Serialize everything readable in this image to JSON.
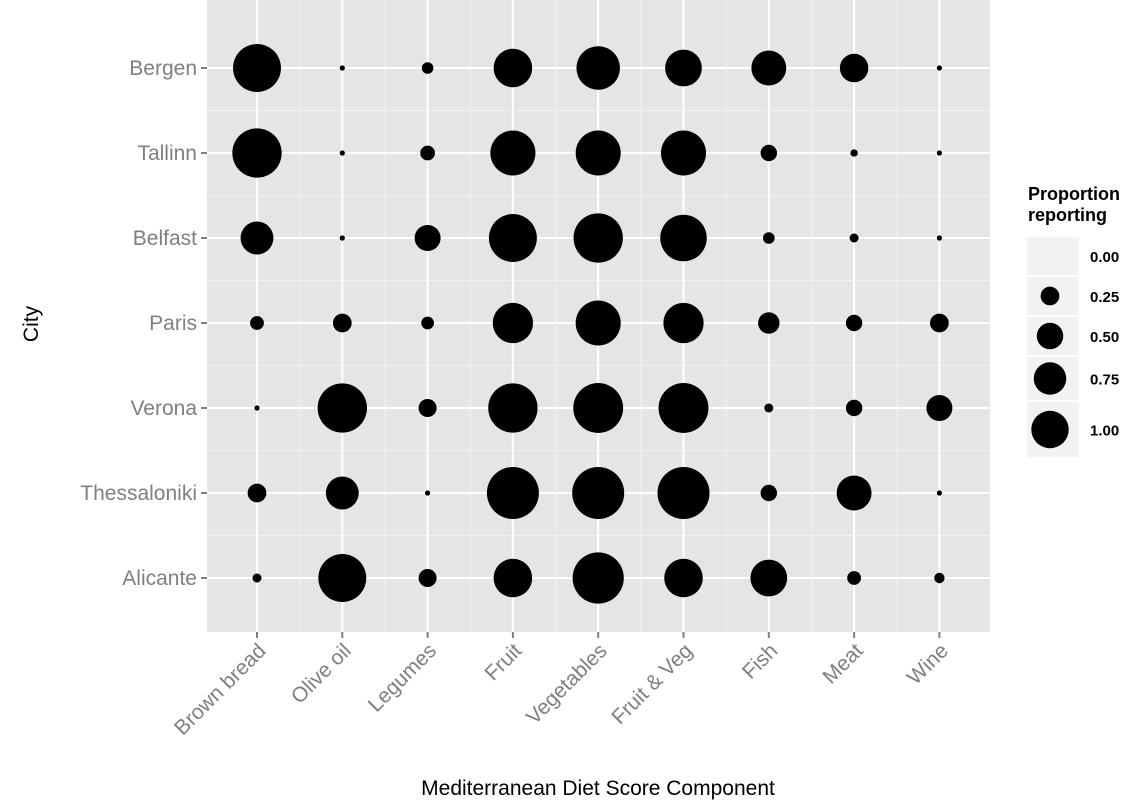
{
  "chart_data": {
    "type": "scatter",
    "xlabel": "Mediterranean Diet Score Component",
    "ylabel": "City",
    "categories": [
      "Brown bread",
      "Olive oil",
      "Legumes",
      "Fruit",
      "Vegetables",
      "Fruit & Veg",
      "Fish",
      "Meat",
      "Wine"
    ],
    "cities": [
      "Bergen",
      "Tallinn",
      "Belfast",
      "Paris",
      "Verona",
      "Thessaloniki",
      "Alicante"
    ],
    "size_legend": {
      "title": [
        "Proportion",
        "reporting"
      ],
      "breaks": [
        0.0,
        0.25,
        0.5,
        0.75,
        1.0
      ],
      "labels": [
        "0.00",
        "0.25",
        "0.50",
        "0.75",
        "1.00"
      ]
    },
    "series": [
      {
        "city": "Bergen",
        "values": [
          0.85,
          0.01,
          0.05,
          0.55,
          0.7,
          0.5,
          0.45,
          0.3,
          0.01
        ]
      },
      {
        "city": "Tallinn",
        "values": [
          0.9,
          0.01,
          0.08,
          0.75,
          0.75,
          0.75,
          0.1,
          0.02,
          0.01
        ]
      },
      {
        "city": "Belfast",
        "values": [
          0.4,
          0.01,
          0.25,
          0.85,
          0.9,
          0.8,
          0.05,
          0.03,
          0.01
        ]
      },
      {
        "city": "Paris",
        "values": [
          0.07,
          0.13,
          0.06,
          0.6,
          0.75,
          0.6,
          0.17,
          0.1,
          0.13
        ]
      },
      {
        "city": "Verona",
        "values": [
          0.01,
          0.9,
          0.12,
          0.9,
          0.92,
          0.92,
          0.03,
          0.1,
          0.25
        ]
      },
      {
        "city": "Thessaloniki",
        "values": [
          0.13,
          0.4,
          0.01,
          1.0,
          1.0,
          1.0,
          0.1,
          0.45,
          0.01
        ]
      },
      {
        "city": "Alicante",
        "values": [
          0.03,
          0.85,
          0.12,
          0.55,
          0.97,
          0.55,
          0.5,
          0.07,
          0.04
        ]
      }
    ],
    "grid": true,
    "legend": "right"
  }
}
